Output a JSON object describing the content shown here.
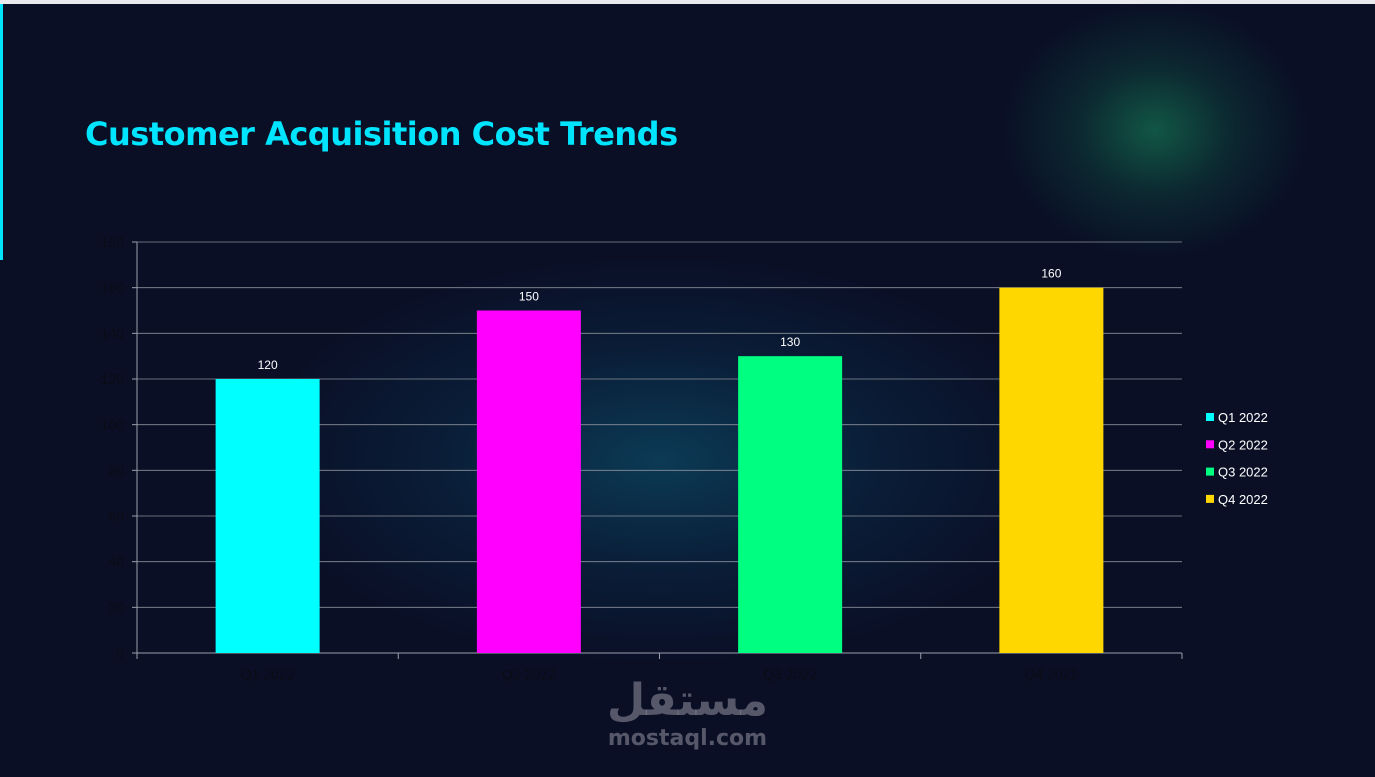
{
  "slide": {
    "title": "Customer Acquisition Cost Trends",
    "watermark_logo": "مستقل",
    "watermark_text": "mostaql.com"
  },
  "chart_data": {
    "type": "bar",
    "title": "",
    "xlabel": "",
    "ylabel": "",
    "categories": [
      "Q1 2022",
      "Q2 2022",
      "Q3 2022",
      "Q4 2022"
    ],
    "values": [
      120,
      150,
      130,
      160
    ],
    "data_labels": [
      "120",
      "150",
      "130",
      "160"
    ],
    "colors": [
      "#00ffff",
      "#ff00ff",
      "#00ff80",
      "#ffd700"
    ],
    "ylim": [
      0,
      180
    ],
    "yticks": [
      0,
      20,
      40,
      60,
      80,
      100,
      120,
      140,
      160,
      180
    ],
    "grid": true,
    "legend": {
      "position": "right",
      "entries": [
        "Q1 2022",
        "Q2 2022",
        "Q3 2022",
        "Q4 2022"
      ]
    }
  }
}
